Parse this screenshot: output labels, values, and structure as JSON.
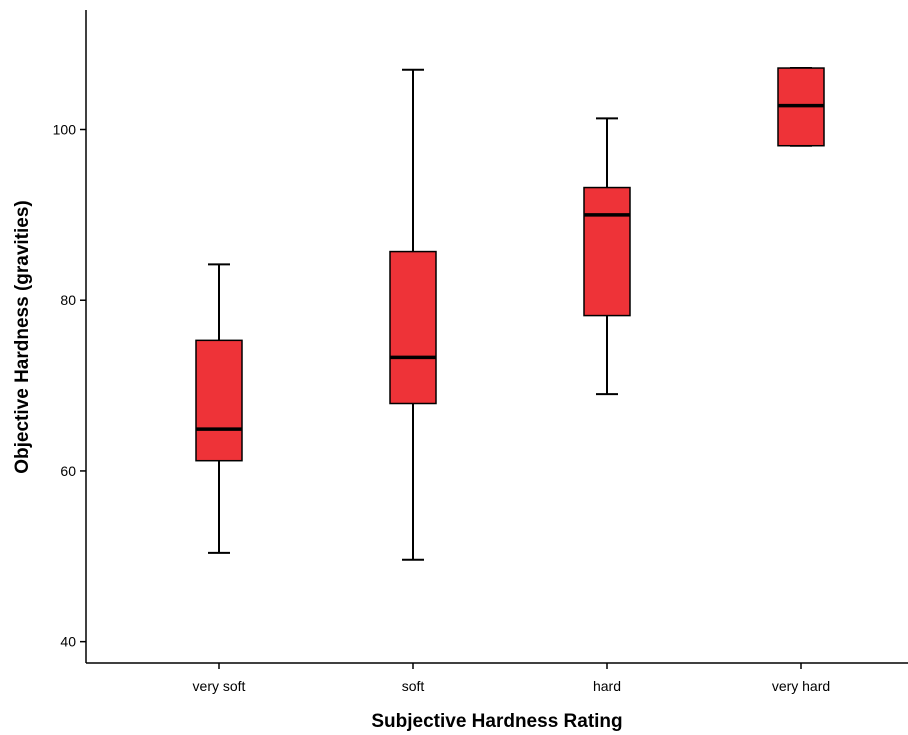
{
  "chart_data": {
    "type": "boxplot",
    "xlabel": "Subjective Hardness Rating",
    "ylabel": "Objective Hardness (gravities)",
    "categories": [
      "very soft",
      "soft",
      "hard",
      "very hard"
    ],
    "boxes": [
      {
        "category": "very soft",
        "min": 50.4,
        "q1": 61.2,
        "median": 64.9,
        "q3": 75.3,
        "max": 84.2
      },
      {
        "category": "soft",
        "min": 49.6,
        "q1": 67.9,
        "median": 73.3,
        "q3": 85.7,
        "max": 107.0
      },
      {
        "category": "hard",
        "min": 69.0,
        "q1": 78.2,
        "median": 90.0,
        "q3": 93.2,
        "max": 101.3
      },
      {
        "category": "very hard",
        "min": 98.1,
        "q1": 98.1,
        "median": 102.8,
        "q3": 107.2,
        "max": 107.2
      }
    ],
    "ylim": [
      37.5,
      114
    ],
    "yticks": [
      40,
      60,
      80,
      100
    ],
    "grid": false,
    "colors": {
      "box_fill": "#ee3338",
      "stroke": "#000000",
      "background": "#ffffff"
    }
  }
}
